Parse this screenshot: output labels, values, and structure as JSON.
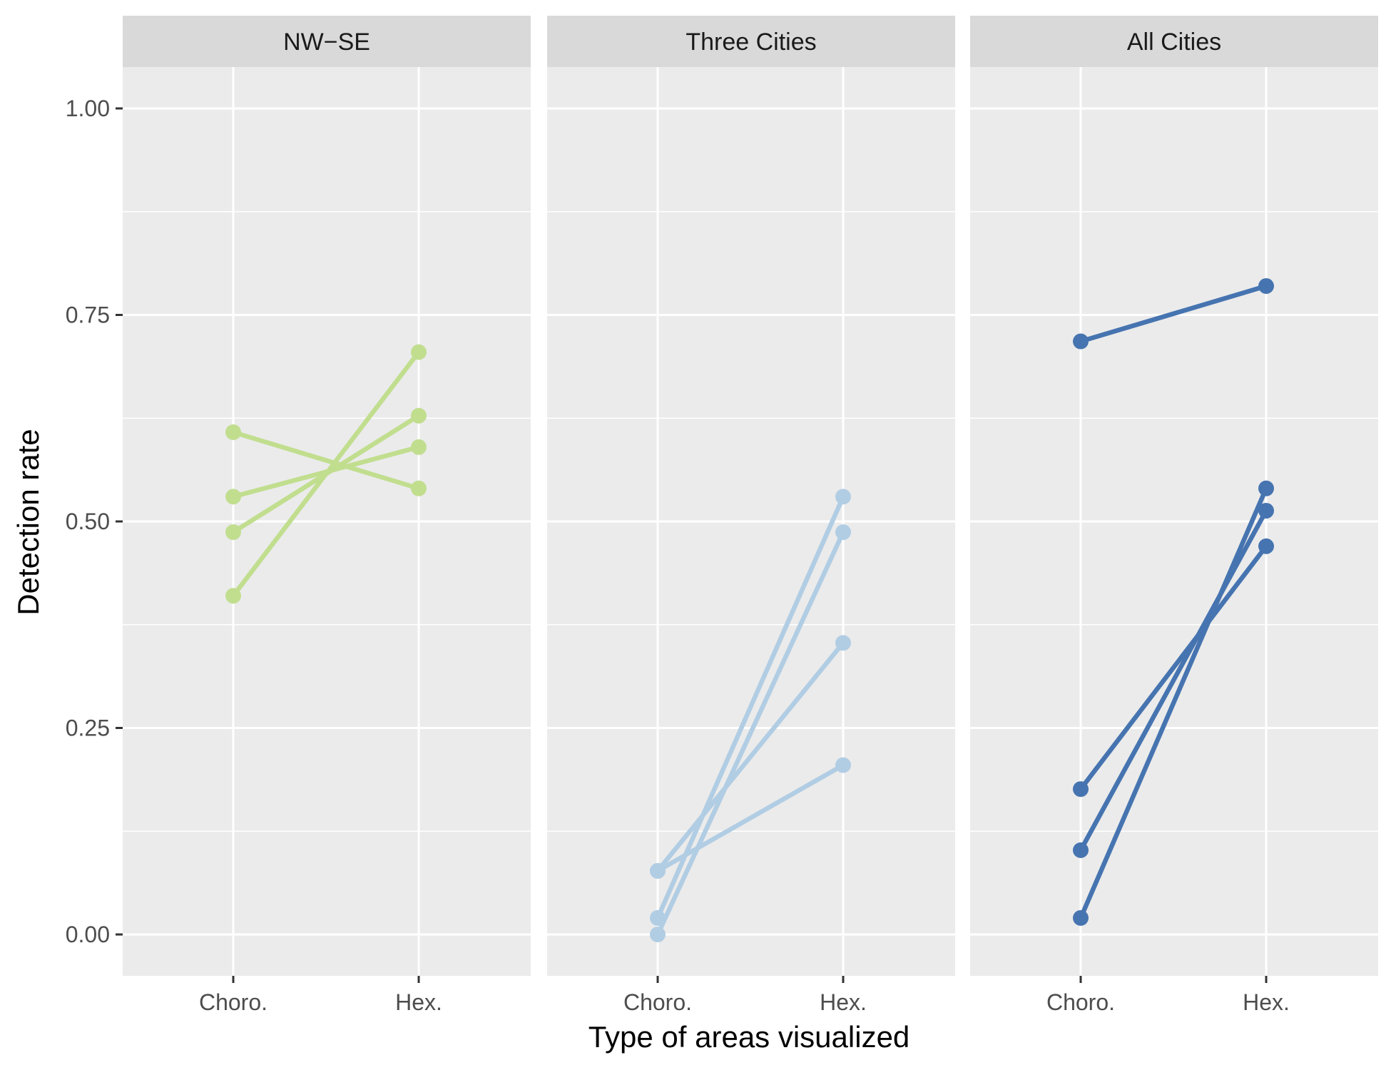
{
  "chart_data": {
    "type": "line",
    "xlabel": "Type of areas visualized",
    "ylabel": "Detection rate",
    "categories": [
      "Choro.",
      "Hex."
    ],
    "ylim": [
      -0.05,
      1.05
    ],
    "yticks": [
      0.0,
      0.25,
      0.5,
      0.75,
      1.0
    ],
    "ytick_labels": [
      "0.00",
      "0.25",
      "0.50",
      "0.75",
      "1.00"
    ],
    "grid": true,
    "panels": [
      {
        "label": "NW−SE",
        "color": "#c1de8f",
        "series": [
          {
            "values": [
              0.41,
              0.705
            ]
          },
          {
            "values": [
              0.487,
              0.628
            ]
          },
          {
            "values": [
              0.53,
              0.59
            ]
          },
          {
            "values": [
              0.608,
              0.54
            ]
          }
        ]
      },
      {
        "label": "Three Cities",
        "color": "#b1cde4",
        "series": [
          {
            "values": [
              0.0,
              0.487
            ]
          },
          {
            "values": [
              0.02,
              0.53
            ]
          },
          {
            "values": [
              0.077,
              0.353
            ]
          },
          {
            "values": [
              0.077,
              0.205
            ]
          }
        ]
      },
      {
        "label": "All Cities",
        "color": "#4674b0",
        "series": [
          {
            "values": [
              0.718,
              0.785
            ]
          },
          {
            "values": [
              0.176,
              0.47
            ]
          },
          {
            "values": [
              0.102,
              0.513
            ]
          },
          {
            "values": [
              0.02,
              0.54
            ]
          }
        ]
      }
    ]
  }
}
